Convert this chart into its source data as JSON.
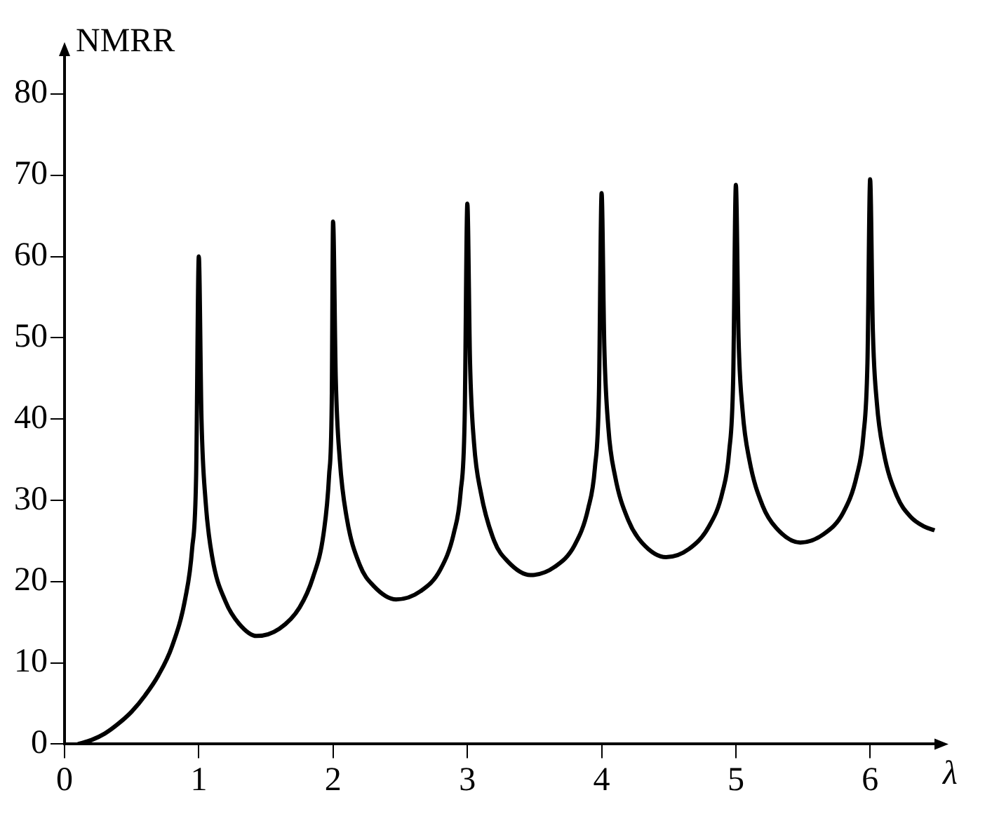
{
  "chart_data": {
    "type": "line",
    "xlabel": "λ",
    "ylabel": "NMRR",
    "x": [
      0.1,
      0.2,
      0.3,
      0.4,
      0.5,
      0.6,
      0.7,
      0.8,
      0.9,
      0.95,
      0.98,
      1.0,
      1.02,
      1.05,
      1.1,
      1.2,
      1.3,
      1.43,
      1.6,
      1.75,
      1.85,
      1.93,
      1.97,
      1.99,
      2.0,
      2.02,
      2.05,
      2.1,
      2.2,
      2.3,
      2.47,
      2.65,
      2.8,
      2.9,
      2.95,
      2.98,
      3.0,
      3.02,
      3.05,
      3.1,
      3.2,
      3.3,
      3.47,
      3.65,
      3.8,
      3.9,
      3.95,
      3.98,
      4.0,
      4.02,
      4.05,
      4.1,
      4.2,
      4.3,
      4.48,
      4.65,
      4.8,
      4.9,
      4.95,
      4.98,
      5.0,
      5.02,
      5.05,
      5.1,
      5.2,
      5.3,
      5.48,
      5.65,
      5.8,
      5.9,
      5.95,
      5.98,
      6.0,
      6.02,
      6.05,
      6.1,
      6.2,
      6.3,
      6.4,
      6.48
    ],
    "series": [
      {
        "color": "#000000",
        "values": [
          0,
          0.5,
          1.3,
          2.5,
          4,
          6,
          8.5,
          12,
          18,
          24,
          33,
          60,
          40,
          30,
          23,
          17.5,
          14.8,
          13.3,
          14.2,
          16.8,
          20.5,
          26,
          33,
          42,
          64.3,
          45,
          35,
          28,
          22,
          19.5,
          17.8,
          18.8,
          21.5,
          26,
          31,
          40,
          66.5,
          47,
          37,
          31,
          25,
          22.5,
          20.8,
          21.8,
          24.5,
          29,
          34,
          43,
          67.8,
          49,
          39,
          33,
          27.5,
          24.8,
          23,
          24,
          26.8,
          31,
          36,
          45,
          68.8,
          50,
          41,
          35,
          29.3,
          26.6,
          24.8,
          25.8,
          28.5,
          33,
          38,
          47,
          69.5,
          51,
          42,
          36,
          30.5,
          28,
          26.8,
          26.3
        ]
      }
    ],
    "xlim": [
      0,
      6.5
    ],
    "ylim": [
      0,
      85
    ],
    "xticks": [
      0,
      1,
      2,
      3,
      4,
      5,
      6
    ],
    "yticks": [
      0,
      10,
      20,
      30,
      40,
      50,
      60,
      70,
      80
    ],
    "grid": false,
    "legend": false,
    "marker": "none",
    "line_style": "solid"
  }
}
